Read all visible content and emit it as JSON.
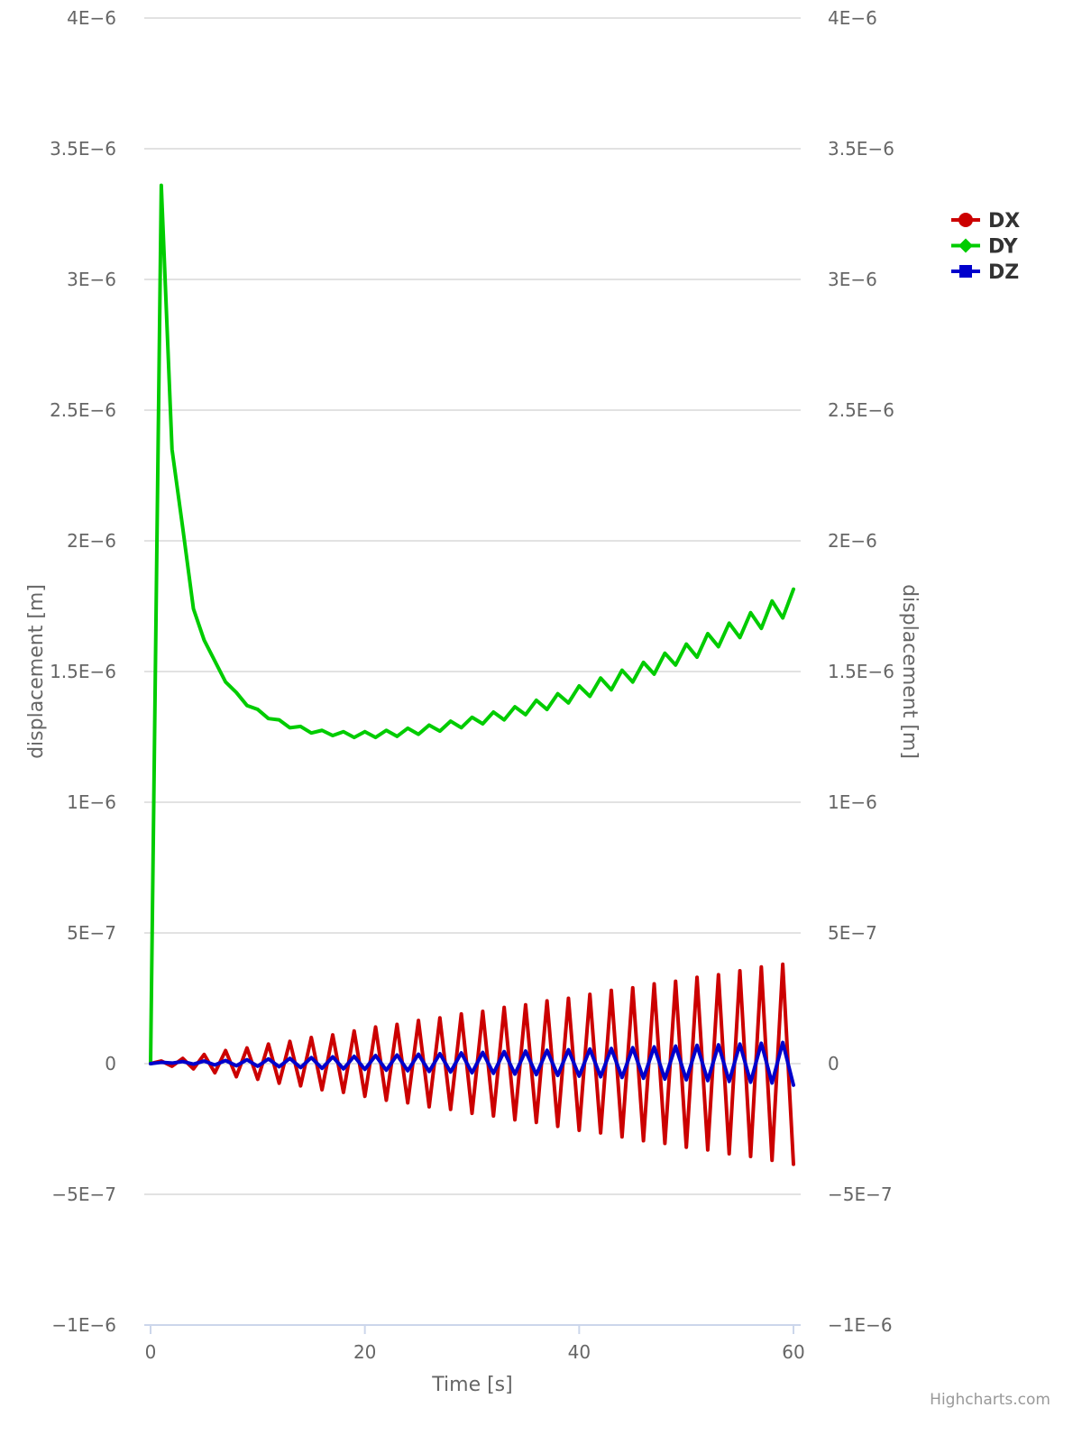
{
  "chart_data": {
    "type": "line",
    "xlabel": "Time [s]",
    "ylabel_left": "displacement [m]",
    "ylabel_right": "displacement [m]",
    "xlim": [
      0,
      60
    ],
    "ylim": [
      -1e-06,
      4e-06
    ],
    "x_ticks": [
      0,
      20,
      40,
      60
    ],
    "x_tick_labels": [
      "0",
      "20",
      "40",
      "60"
    ],
    "y_ticks": [
      -1e-06,
      -5e-07,
      0,
      5e-07,
      1e-06,
      1.5e-06,
      2e-06,
      2.5e-06,
      3e-06,
      3.5e-06,
      4e-06
    ],
    "y_tick_labels": [
      "−1E−6",
      "−5E−7",
      "0",
      "5E−7",
      "1E−6",
      "1.5E−6",
      "2E−6",
      "2.5E−6",
      "3E−6",
      "3.5E−6",
      "4E−6"
    ],
    "grid": true,
    "legend_position": "top-right",
    "credit": "Highcharts.com",
    "x": [
      0,
      1,
      2,
      3,
      4,
      5,
      6,
      7,
      8,
      9,
      10,
      11,
      12,
      13,
      14,
      15,
      16,
      17,
      18,
      19,
      20,
      21,
      22,
      23,
      24,
      25,
      26,
      27,
      28,
      29,
      30,
      31,
      32,
      33,
      34,
      35,
      36,
      37,
      38,
      39,
      40,
      41,
      42,
      43,
      44,
      45,
      46,
      47,
      48,
      49,
      50,
      51,
      52,
      53,
      54,
      55,
      56,
      57,
      58,
      59,
      60
    ],
    "series": [
      {
        "name": "DX",
        "color": "#cc0000",
        "marker": "circle",
        "values": [
          0,
          1e-08,
          -1e-08,
          2e-08,
          -2e-08,
          3.5e-08,
          -3.5e-08,
          5e-08,
          -5e-08,
          6e-08,
          -6e-08,
          7.5e-08,
          -7.5e-08,
          8.5e-08,
          -8.5e-08,
          1e-07,
          -1e-07,
          1.1e-07,
          -1.1e-07,
          1.25e-07,
          -1.25e-07,
          1.4e-07,
          -1.4e-07,
          1.5e-07,
          -1.5e-07,
          1.65e-07,
          -1.65e-07,
          1.75e-07,
          -1.75e-07,
          1.9e-07,
          -1.9e-07,
          2e-07,
          -2e-07,
          2.15e-07,
          -2.15e-07,
          2.25e-07,
          -2.25e-07,
          2.4e-07,
          -2.4e-07,
          2.5e-07,
          -2.55e-07,
          2.65e-07,
          -2.65e-07,
          2.8e-07,
          -2.8e-07,
          2.9e-07,
          -2.95e-07,
          3.05e-07,
          -3.05e-07,
          3.15e-07,
          -3.2e-07,
          3.3e-07,
          -3.3e-07,
          3.4e-07,
          -3.45e-07,
          3.55e-07,
          -3.55e-07,
          3.7e-07,
          -3.7e-07,
          3.8e-07,
          -3.85e-07
        ]
      },
      {
        "name": "DY",
        "color": "#00cc00",
        "marker": "diamond",
        "values": [
          0,
          3.36e-06,
          2.35e-06,
          2.05e-06,
          1.74e-06,
          1.62e-06,
          1.54e-06,
          1.46e-06,
          1.42e-06,
          1.37e-06,
          1.355e-06,
          1.32e-06,
          1.315e-06,
          1.285e-06,
          1.29e-06,
          1.265e-06,
          1.275e-06,
          1.255e-06,
          1.27e-06,
          1.248e-06,
          1.27e-06,
          1.248e-06,
          1.275e-06,
          1.252e-06,
          1.283e-06,
          1.26e-06,
          1.295e-06,
          1.272e-06,
          1.31e-06,
          1.285e-06,
          1.325e-06,
          1.3e-06,
          1.345e-06,
          1.315e-06,
          1.365e-06,
          1.335e-06,
          1.39e-06,
          1.355e-06,
          1.415e-06,
          1.38e-06,
          1.445e-06,
          1.405e-06,
          1.475e-06,
          1.43e-06,
          1.505e-06,
          1.46e-06,
          1.535e-06,
          1.49e-06,
          1.57e-06,
          1.525e-06,
          1.605e-06,
          1.555e-06,
          1.645e-06,
          1.595e-06,
          1.685e-06,
          1.63e-06,
          1.725e-06,
          1.665e-06,
          1.77e-06,
          1.705e-06,
          1.815e-06
        ]
      },
      {
        "name": "DZ",
        "color": "#0000cc",
        "marker": "square",
        "values": [
          0,
          5e-09,
          2e-09,
          8e-09,
          -2e-09,
          1e-08,
          -5e-09,
          1.2e-08,
          -8e-09,
          1.5e-08,
          -1e-08,
          1.8e-08,
          -1.2e-08,
          2e-08,
          -1.5e-08,
          2.3e-08,
          -1.8e-08,
          2.6e-08,
          -2e-08,
          2.8e-08,
          -2.2e-08,
          3.1e-08,
          -2.5e-08,
          3.3e-08,
          -2.7e-08,
          3.6e-08,
          -3e-08,
          3.8e-08,
          -3.2e-08,
          4.1e-08,
          -3.5e-08,
          4.3e-08,
          -3.7e-08,
          4.6e-08,
          -4e-08,
          4.8e-08,
          -4.2e-08,
          5.1e-08,
          -4.5e-08,
          5.3e-08,
          -4.8e-08,
          5.6e-08,
          -5e-08,
          5.8e-08,
          -5.3e-08,
          6.1e-08,
          -5.6e-08,
          6.4e-08,
          -5.9e-08,
          6.7e-08,
          -6.2e-08,
          7e-08,
          -6.5e-08,
          7.2e-08,
          -6.8e-08,
          7.5e-08,
          -7.1e-08,
          7.8e-08,
          -7.4e-08,
          8.1e-08,
          -8.2e-08
        ]
      }
    ]
  },
  "colors": {
    "grid": "#d8d8d8",
    "x_axis": "#ccd6eb",
    "tick_text": "#666666",
    "legend_text": "#333333"
  }
}
